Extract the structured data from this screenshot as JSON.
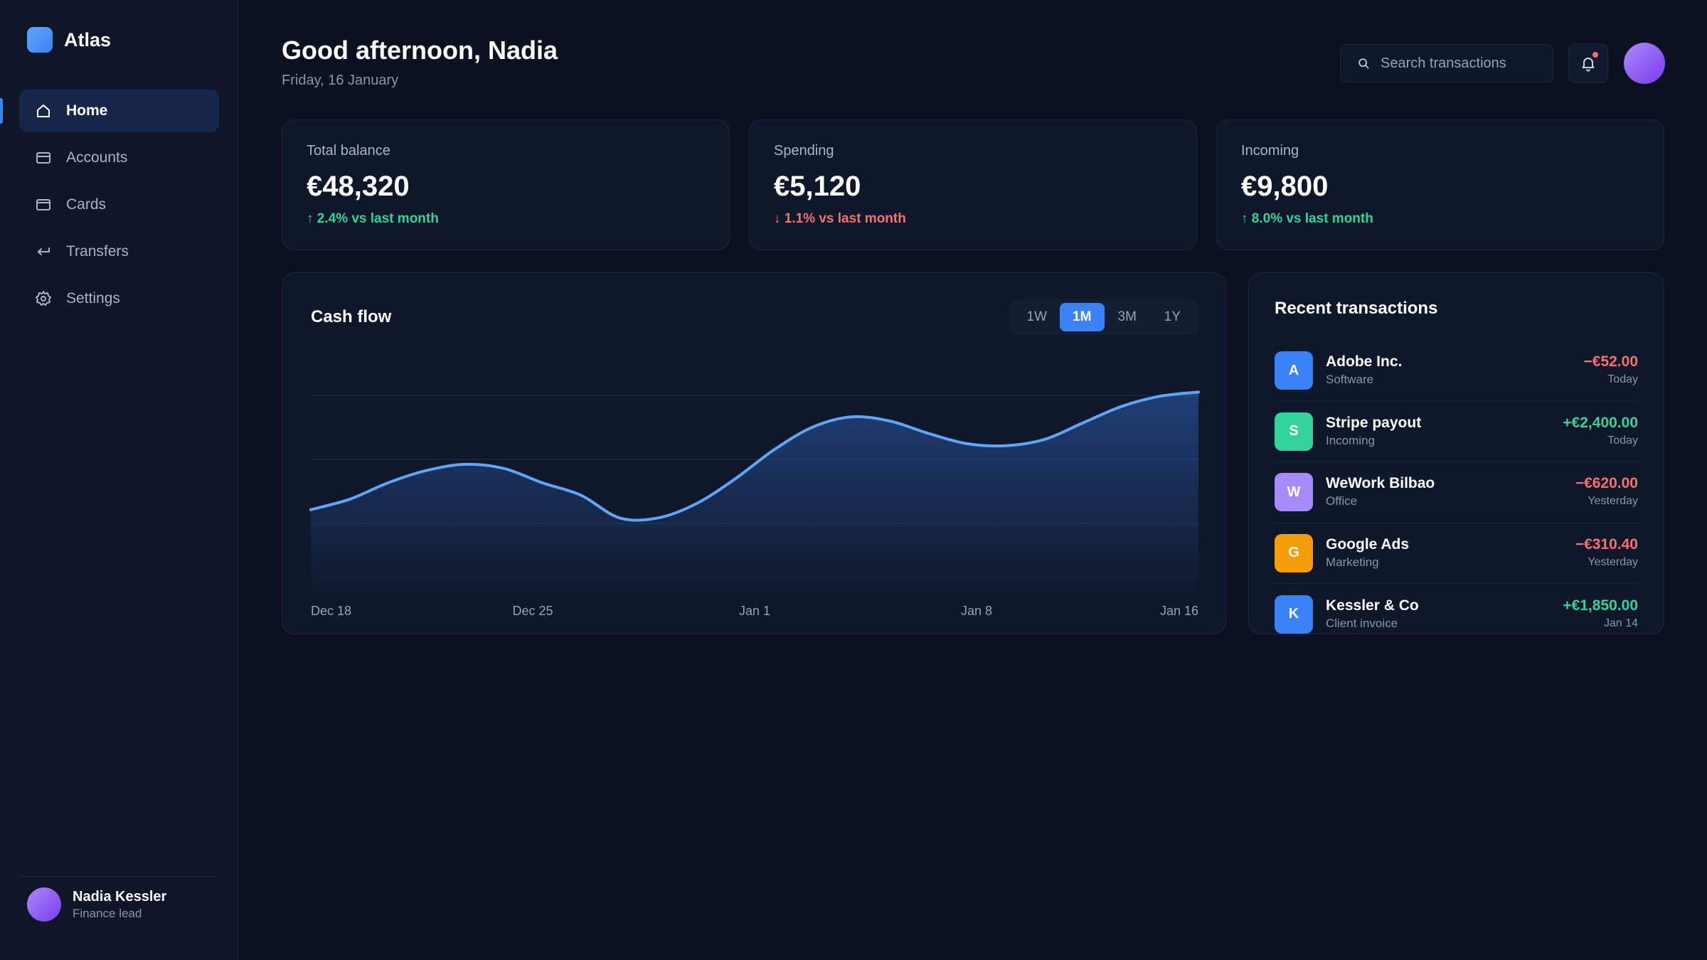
{
  "brand": {
    "name": "Atlas"
  },
  "nav": {
    "items": [
      {
        "label": "Home",
        "icon": "home-icon",
        "active": true
      },
      {
        "label": "Accounts",
        "icon": "wallet-icon",
        "active": false
      },
      {
        "label": "Cards",
        "icon": "credit-card-icon",
        "active": false
      },
      {
        "label": "Transfers",
        "icon": "transfer-arrow-icon",
        "active": false
      },
      {
        "label": "Settings",
        "icon": "gear-icon",
        "active": false
      }
    ]
  },
  "profile": {
    "name": "Nadia Kessler",
    "role": "Finance lead"
  },
  "header": {
    "greeting": "Good afternoon, Nadia",
    "date": "Friday, 16 January",
    "search_placeholder": "Search transactions"
  },
  "stats": [
    {
      "label": "Total balance",
      "value": "€48,320",
      "delta": "↑ 2.4% vs last month",
      "trend": "up"
    },
    {
      "label": "Spending",
      "value": "€5,120",
      "delta": "↓ 1.1% vs last month",
      "trend": "down"
    },
    {
      "label": "Incoming",
      "value": "€9,800",
      "delta": "↑ 8.0% vs last month",
      "trend": "up"
    }
  ],
  "cashflow": {
    "title": "Cash flow",
    "ranges": [
      "1W",
      "1M",
      "3M",
      "1Y"
    ],
    "selected_range": "1M"
  },
  "chart_data": {
    "type": "area",
    "title": "Cash flow",
    "x_ticks": [
      "Dec 18",
      "Dec 25",
      "Jan 1",
      "Jan 8",
      "Jan 16"
    ],
    "points": [
      0.37,
      0.42,
      0.5,
      0.56,
      0.59,
      0.57,
      0.5,
      0.44,
      0.33,
      0.33,
      0.4,
      0.52,
      0.66,
      0.77,
      0.82,
      0.8,
      0.74,
      0.69,
      0.68,
      0.71,
      0.79,
      0.87,
      0.92,
      0.94
    ],
    "grid_lines": 3,
    "ylim": [
      0,
      1
    ],
    "line_color": "#60a5fa"
  },
  "transactions": {
    "title": "Recent transactions",
    "items": [
      {
        "initial": "A",
        "name": "Adobe Inc.",
        "category": "Software",
        "amount": "−€52.00",
        "time": "Today",
        "type": "debit",
        "color": "#3b82f6"
      },
      {
        "initial": "S",
        "name": "Stripe payout",
        "category": "Incoming",
        "amount": "+€2,400.00",
        "time": "Today",
        "type": "credit",
        "color": "#34d399"
      },
      {
        "initial": "W",
        "name": "WeWork Bilbao",
        "category": "Office",
        "amount": "−€620.00",
        "time": "Yesterday",
        "type": "debit",
        "color": "#a78bfa"
      },
      {
        "initial": "G",
        "name": "Google Ads",
        "category": "Marketing",
        "amount": "−€310.40",
        "time": "Yesterday",
        "type": "debit",
        "color": "#f59e0b"
      },
      {
        "initial": "K",
        "name": "Kessler & Co",
        "category": "Client invoice",
        "amount": "+€1,850.00",
        "time": "Jan 14",
        "type": "credit",
        "color": "#3b82f6"
      }
    ]
  }
}
